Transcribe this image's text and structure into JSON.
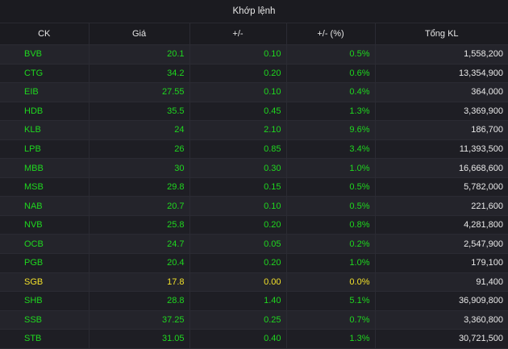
{
  "header": {
    "title": "Khớp lệnh"
  },
  "columns": [
    "CK",
    "Giá",
    "+/-",
    "+/- (%)",
    "Tổng KL"
  ],
  "colors": {
    "up": "#1fd81f",
    "reference": "#f2e12a",
    "text": "#e8e8e8"
  },
  "rows": [
    {
      "symbol": "BVB",
      "price": "20.1",
      "change": "0.10",
      "pct": "0.5%",
      "volume": "1,558,200",
      "status": "up"
    },
    {
      "symbol": "CTG",
      "price": "34.2",
      "change": "0.20",
      "pct": "0.6%",
      "volume": "13,354,900",
      "status": "up"
    },
    {
      "symbol": "EIB",
      "price": "27.55",
      "change": "0.10",
      "pct": "0.4%",
      "volume": "364,000",
      "status": "up"
    },
    {
      "symbol": "HDB",
      "price": "35.5",
      "change": "0.45",
      "pct": "1.3%",
      "volume": "3,369,900",
      "status": "up"
    },
    {
      "symbol": "KLB",
      "price": "24",
      "change": "2.10",
      "pct": "9.6%",
      "volume": "186,700",
      "status": "up"
    },
    {
      "symbol": "LPB",
      "price": "26",
      "change": "0.85",
      "pct": "3.4%",
      "volume": "11,393,500",
      "status": "up"
    },
    {
      "symbol": "MBB",
      "price": "30",
      "change": "0.30",
      "pct": "1.0%",
      "volume": "16,668,600",
      "status": "up"
    },
    {
      "symbol": "MSB",
      "price": "29.8",
      "change": "0.15",
      "pct": "0.5%",
      "volume": "5,782,000",
      "status": "up"
    },
    {
      "symbol": "NAB",
      "price": "20.7",
      "change": "0.10",
      "pct": "0.5%",
      "volume": "221,600",
      "status": "up"
    },
    {
      "symbol": "NVB",
      "price": "25.8",
      "change": "0.20",
      "pct": "0.8%",
      "volume": "4,281,800",
      "status": "up"
    },
    {
      "symbol": "OCB",
      "price": "24.7",
      "change": "0.05",
      "pct": "0.2%",
      "volume": "2,547,900",
      "status": "up"
    },
    {
      "symbol": "PGB",
      "price": "20.4",
      "change": "0.20",
      "pct": "1.0%",
      "volume": "179,100",
      "status": "up"
    },
    {
      "symbol": "SGB",
      "price": "17.8",
      "change": "0.00",
      "pct": "0.0%",
      "volume": "91,400",
      "status": "ref"
    },
    {
      "symbol": "SHB",
      "price": "28.8",
      "change": "1.40",
      "pct": "5.1%",
      "volume": "36,909,800",
      "status": "up"
    },
    {
      "symbol": "SSB",
      "price": "37.25",
      "change": "0.25",
      "pct": "0.7%",
      "volume": "3,360,800",
      "status": "up"
    },
    {
      "symbol": "STB",
      "price": "31.05",
      "change": "0.40",
      "pct": "1.3%",
      "volume": "30,721,500",
      "status": "up"
    }
  ]
}
